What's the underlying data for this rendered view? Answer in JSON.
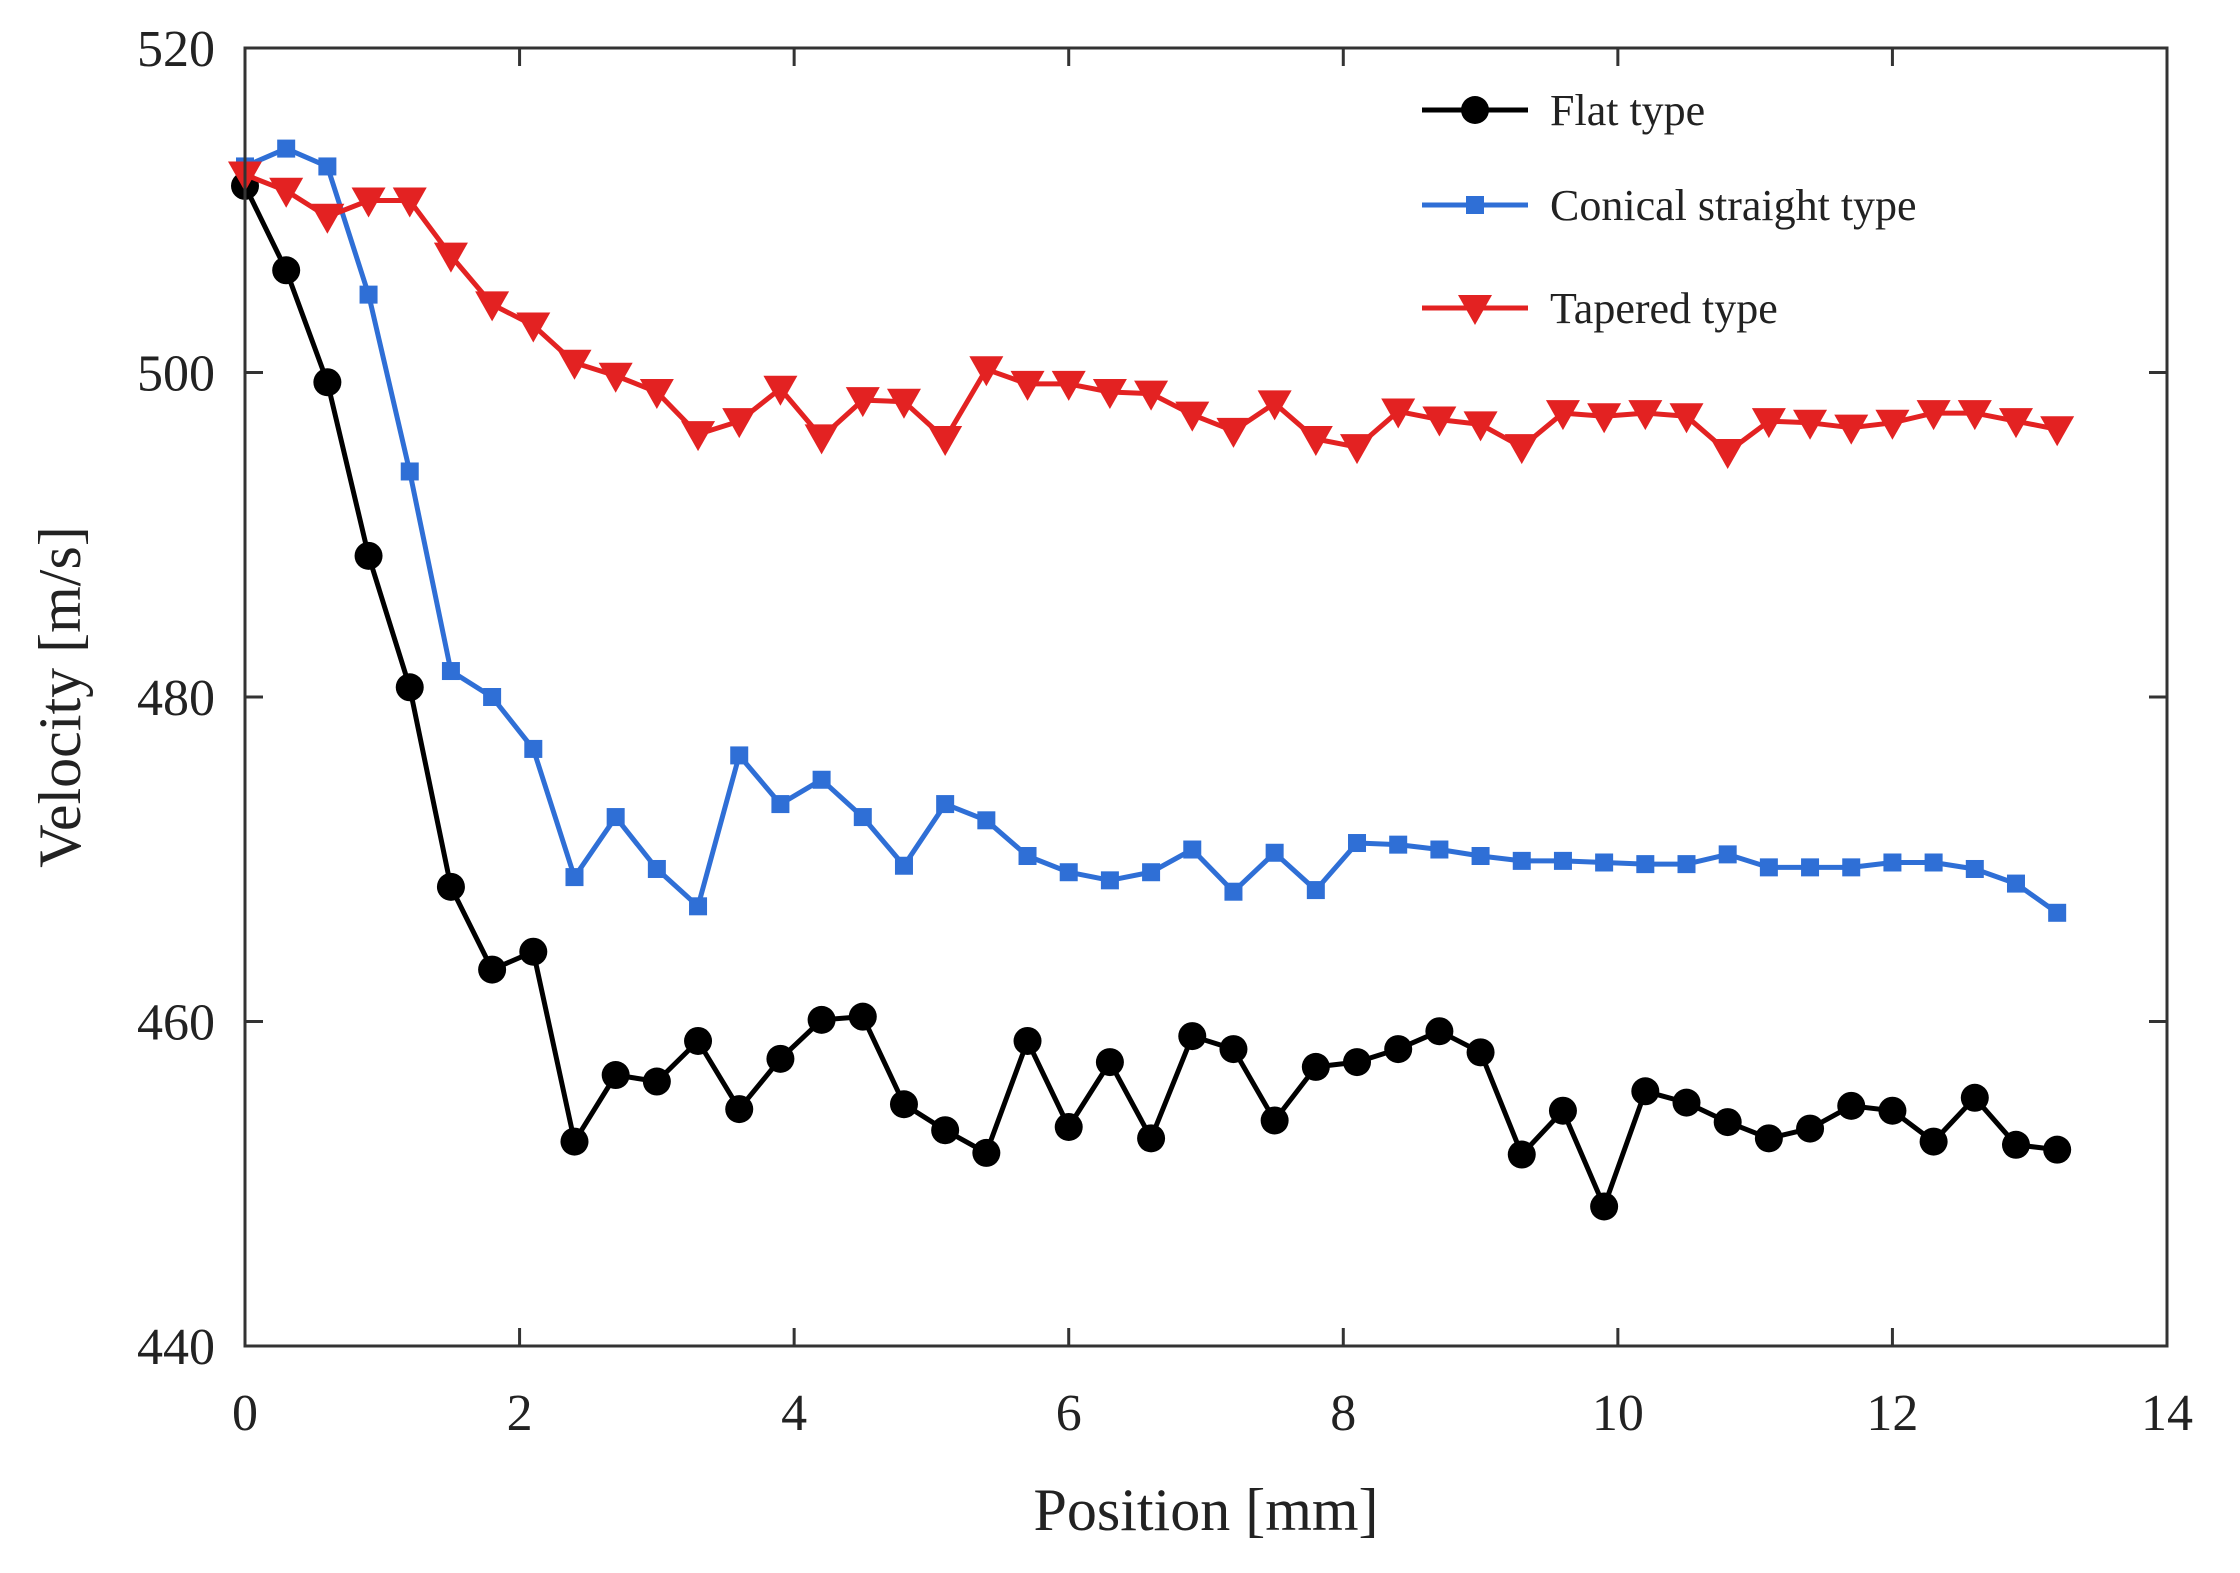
{
  "chart_data": {
    "type": "line",
    "title": "",
    "xlabel": "Position [mm]",
    "ylabel": "Velocity [m/s]",
    "xlim": [
      0,
      14
    ],
    "ylim": [
      440,
      520
    ],
    "xticks": [
      0,
      2,
      4,
      6,
      8,
      10,
      12,
      14
    ],
    "yticks": [
      440,
      460,
      480,
      500,
      520
    ],
    "grid": false,
    "legend_position": "top-right",
    "series": [
      {
        "name": "Flat type",
        "color": "#000000",
        "marker": "circle",
        "x": [
          0,
          0.3,
          0.6,
          0.9,
          1.2,
          1.5,
          1.8,
          2.1,
          2.4,
          2.7,
          3.0,
          3.3,
          3.6,
          3.9,
          4.2,
          4.5,
          4.8,
          5.1,
          5.4,
          5.7,
          6.0,
          6.3,
          6.6,
          6.9,
          7.2,
          7.5,
          7.8,
          8.1,
          8.4,
          8.7,
          9.0,
          9.3,
          9.6,
          9.9,
          10.2,
          10.5,
          10.8,
          11.1,
          11.4,
          11.7,
          12.0,
          12.3,
          12.6,
          12.9,
          13.2
        ],
        "y": [
          511.5,
          506.3,
          499.4,
          488.7,
          480.6,
          468.3,
          463.2,
          464.3,
          452.6,
          456.7,
          456.3,
          458.8,
          454.6,
          457.7,
          460.1,
          460.3,
          454.9,
          453.3,
          451.9,
          458.8,
          453.5,
          457.5,
          452.8,
          459.1,
          458.3,
          453.9,
          457.2,
          457.5,
          458.3,
          459.4,
          458.1,
          451.8,
          454.5,
          448.6,
          455.7,
          455.0,
          453.8,
          452.8,
          453.4,
          454.8,
          454.5,
          452.6,
          455.3,
          452.4,
          452.1
        ]
      },
      {
        "name": "Conical straight type",
        "color": "#2f6fd6",
        "marker": "square",
        "x": [
          0,
          0.3,
          0.6,
          0.9,
          1.2,
          1.5,
          1.8,
          2.1,
          2.4,
          2.7,
          3.0,
          3.3,
          3.6,
          3.9,
          4.2,
          4.5,
          4.8,
          5.1,
          5.4,
          5.7,
          6.0,
          6.3,
          6.6,
          6.9,
          7.2,
          7.5,
          7.8,
          8.1,
          8.4,
          8.7,
          9.0,
          9.3,
          9.6,
          9.9,
          10.2,
          10.5,
          10.8,
          11.1,
          11.4,
          11.7,
          12.0,
          12.3,
          12.6,
          12.9,
          13.2
        ],
        "y": [
          512.7,
          513.8,
          512.7,
          504.8,
          493.9,
          481.6,
          480.0,
          476.8,
          468.9,
          472.6,
          469.4,
          467.1,
          476.4,
          473.4,
          474.9,
          472.6,
          469.6,
          473.4,
          472.4,
          470.2,
          469.2,
          468.7,
          469.2,
          470.6,
          468.0,
          470.4,
          468.1,
          471.0,
          470.9,
          470.6,
          470.2,
          469.9,
          469.9,
          469.8,
          469.7,
          469.7,
          470.3,
          469.5,
          469.5,
          469.5,
          469.8,
          469.8,
          469.4,
          468.5,
          466.7
        ]
      },
      {
        "name": "Tapered type",
        "color": "#e32222",
        "marker": "triangle-down",
        "x": [
          0,
          0.3,
          0.6,
          0.9,
          1.2,
          1.5,
          1.8,
          2.1,
          2.4,
          2.7,
          3.0,
          3.3,
          3.6,
          3.9,
          4.2,
          4.5,
          4.8,
          5.1,
          5.4,
          5.7,
          6.0,
          6.3,
          6.6,
          6.9,
          7.2,
          7.5,
          7.8,
          8.1,
          8.4,
          8.7,
          9.0,
          9.3,
          9.6,
          9.9,
          10.2,
          10.5,
          10.8,
          11.1,
          11.4,
          11.7,
          12.0,
          12.3,
          12.6,
          12.9,
          13.2
        ],
        "y": [
          512.2,
          511.2,
          509.6,
          510.6,
          510.6,
          507.2,
          504.2,
          502.9,
          500.6,
          499.8,
          498.8,
          496.2,
          497.0,
          499.0,
          496.0,
          498.3,
          498.2,
          495.9,
          500.2,
          499.3,
          499.3,
          498.8,
          498.7,
          497.4,
          496.4,
          498.1,
          495.9,
          495.4,
          497.6,
          497.1,
          496.8,
          495.4,
          497.5,
          497.3,
          497.5,
          497.3,
          495.1,
          497.0,
          496.9,
          496.6,
          496.9,
          497.5,
          497.5,
          497.0,
          496.5
        ]
      }
    ]
  }
}
